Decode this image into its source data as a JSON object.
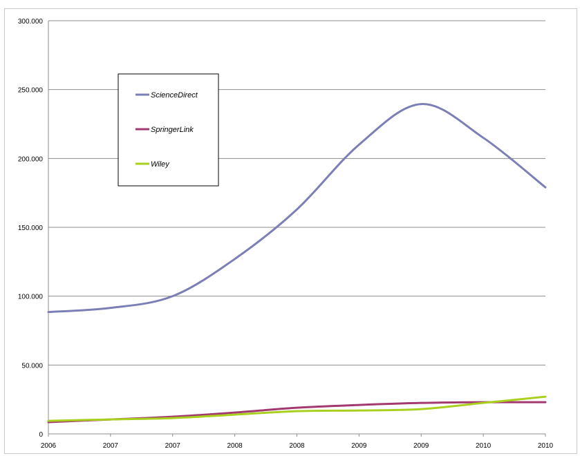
{
  "chart_data": {
    "type": "line",
    "title": "",
    "xlabel": "",
    "ylabel": "",
    "ylim": [
      0,
      300000
    ],
    "grid": true,
    "legend_position": "top-left",
    "x_tick_labels": [
      "2006",
      "2007",
      "2007",
      "2008",
      "2008",
      "2009",
      "2009",
      "2010",
      "2010"
    ],
    "y_tick_labels": [
      "0",
      "50.000",
      "100.000",
      "150.000",
      "200.000",
      "250.000",
      "300.000"
    ],
    "y_tick_values": [
      0,
      50000,
      100000,
      150000,
      200000,
      250000,
      300000
    ],
    "series": [
      {
        "name": "ScienceDirect",
        "color": "#7b7fb5",
        "values": [
          88500,
          91500,
          100000,
          127000,
          163000,
          210000,
          239500,
          215000,
          179000
        ]
      },
      {
        "name": "SpringerLink",
        "color": "#a23a70",
        "values": [
          8500,
          10500,
          12500,
          15500,
          19000,
          21000,
          22500,
          23000,
          23000
        ]
      },
      {
        "name": "Wiley",
        "color": "#a9d01e",
        "values": [
          9500,
          10500,
          11500,
          14000,
          16500,
          17000,
          18000,
          22500,
          27000
        ]
      }
    ]
  }
}
